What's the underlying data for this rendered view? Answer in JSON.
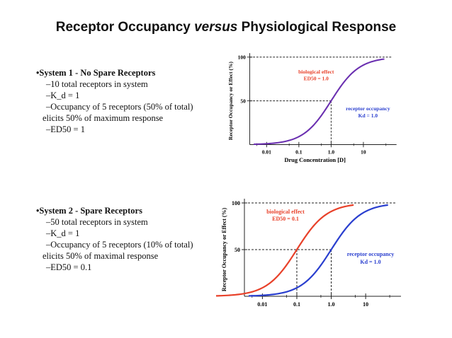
{
  "title": {
    "part1": "Receptor Occupancy ",
    "part2": "versus",
    "part3": " Physiological Response"
  },
  "system1": {
    "heading": "•System 1 - No Spare Receptors",
    "line1": "–10 total receptors in system",
    "line2": "–K_d = 1",
    "line3": "–Occupancy of 5 receptors (50% of total)",
    "line4": "elicits 50% of maximum response",
    "line5": "–ED50 = 1"
  },
  "system2": {
    "heading": "•System 2 - Spare Receptors",
    "line1": "–50 total receptors in system",
    "line2": "–K_d = 1",
    "line3": "–Occupancy of 5 receptors (10% of total)",
    "line4": "elicits 50% of maximal response",
    "line5": "–ED50 = 0.1"
  },
  "colors": {
    "effect": "#e8412a",
    "occupancy": "#2a3fcf",
    "overlap": "#6a2fb0"
  },
  "chart_data": [
    {
      "type": "line",
      "xscale": "log",
      "xlim": [
        0.003,
        80
      ],
      "ylim": [
        0,
        100
      ],
      "x_ticks": [
        "0.01",
        "0.1",
        "1.0",
        "10"
      ],
      "y_ticks": [
        "50",
        "100"
      ],
      "xlabel": "Drug Concentration [D]",
      "ylabel": "Receptor Occupancy or Effect (%)",
      "series": [
        {
          "name": "biological effect",
          "ed50": 1.0,
          "x": [
            0.01,
            0.03,
            0.1,
            0.3,
            1,
            3,
            10,
            30
          ],
          "y": [
            1,
            3,
            9,
            23,
            50,
            75,
            91,
            97
          ]
        },
        {
          "name": "receptor occupancy",
          "kd": 1.0,
          "x": [
            0.01,
            0.03,
            0.1,
            0.3,
            1,
            3,
            10,
            30
          ],
          "y": [
            1,
            3,
            9,
            23,
            50,
            75,
            91,
            97
          ]
        }
      ],
      "annotations": {
        "effect_label": "biological effect",
        "effect_value": "ED50 = 1.0",
        "occ_label": "receptor occupancy",
        "occ_value": "Kd = 1.0"
      }
    },
    {
      "type": "line",
      "xscale": "log",
      "xlim": [
        0.003,
        80
      ],
      "ylim": [
        0,
        100
      ],
      "x_ticks": [
        "0.01",
        "0.1",
        "1.0",
        "10"
      ],
      "y_ticks": [
        "50",
        "100"
      ],
      "xlabel": "",
      "ylabel": "Receptor Occupancy or Effect (%)",
      "series": [
        {
          "name": "biological effect",
          "ed50": 0.1,
          "x": [
            0.003,
            0.01,
            0.03,
            0.1,
            0.3,
            1,
            3,
            10
          ],
          "y": [
            3,
            9,
            23,
            50,
            75,
            91,
            97,
            99
          ]
        },
        {
          "name": "receptor occupancy",
          "kd": 1.0,
          "x": [
            0.01,
            0.03,
            0.1,
            0.3,
            1,
            3,
            10,
            30
          ],
          "y": [
            1,
            3,
            9,
            23,
            50,
            75,
            91,
            97
          ]
        }
      ],
      "annotations": {
        "effect_label": "biological effect",
        "effect_value": "ED50 = 0.1",
        "occ_label": "receptor occupancy",
        "occ_value": "Kd = 1.0"
      }
    }
  ]
}
